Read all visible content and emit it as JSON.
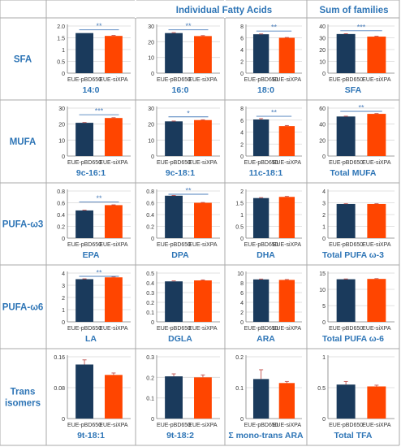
{
  "header": {
    "individual": "Individual Fatty Acids",
    "families": "Sum of families"
  },
  "colors": {
    "ctrl": "#1a3a5c",
    "sixpa": "#ff4500",
    "heading": "#2e75b6",
    "sig_line": "#4f81bd",
    "grid": "#d9d9d9",
    "error": "#c0504d"
  },
  "rows": [
    {
      "label": "SFA"
    },
    {
      "label": "MUFA"
    },
    {
      "label": "PUFA-ω3"
    },
    {
      "label": "PUFA-ω6"
    },
    {
      "label": "Trans isomers"
    }
  ],
  "chart_data": [
    {
      "type": "bar",
      "title": "14:0",
      "categories": [
        "EUE-pBD650",
        "EUE-siXPA"
      ],
      "values": [
        1.7,
        1.58
      ],
      "errors": [
        0,
        0.02
      ],
      "ylim": [
        0,
        2
      ],
      "yticks": [
        "0",
        "0.5",
        "1",
        "1.5",
        "2.0"
      ],
      "sig": "**"
    },
    {
      "type": "bar",
      "title": "16:0",
      "categories": [
        "EUE-pBD650",
        "EUE-siXPA"
      ],
      "values": [
        25.5,
        23.6
      ],
      "errors": [
        0.3,
        0.3
      ],
      "ylim": [
        0,
        30
      ],
      "yticks": [
        "0",
        "10",
        "20",
        "30"
      ],
      "sig": "**"
    },
    {
      "type": "bar",
      "title": "18:0",
      "categories": [
        "EUE-pBD650",
        "EUE-siXPA"
      ],
      "values": [
        6.6,
        6.0
      ],
      "errors": [
        0.05,
        0.05
      ],
      "ylim": [
        0,
        8
      ],
      "yticks": [
        "0",
        "2",
        "4",
        "6",
        "8"
      ],
      "sig": "**"
    },
    {
      "type": "bar",
      "title": "SFA",
      "categories": [
        "EUE-pBD650",
        "EUE-siXPA"
      ],
      "values": [
        33.2,
        31.0
      ],
      "errors": [
        0.3,
        0.3
      ],
      "ylim": [
        0,
        40
      ],
      "yticks": [
        "0",
        "10",
        "20",
        "30",
        "40"
      ],
      "sig": "***"
    },
    {
      "type": "bar",
      "title": "9c-16:1",
      "categories": [
        "EUE-pBD650",
        "EUE-siXPA"
      ],
      "values": [
        20.8,
        23.8
      ],
      "errors": [
        0.2,
        0.2
      ],
      "ylim": [
        0,
        30
      ],
      "yticks": [
        "0",
        "10",
        "20",
        "30"
      ],
      "sig": "***"
    },
    {
      "type": "bar",
      "title": "9c-18:1",
      "categories": [
        "EUE-pBD650",
        "EUE-siXPA"
      ],
      "values": [
        21.7,
        22.5
      ],
      "errors": [
        0.2,
        0.2
      ],
      "ylim": [
        0,
        30
      ],
      "yticks": [
        "0",
        "10",
        "20",
        "30"
      ],
      "sig": "*"
    },
    {
      "type": "bar",
      "title": "11c-18:1",
      "categories": [
        "EUE-pBD650",
        "EUE-siXPA"
      ],
      "values": [
        6.1,
        5.0
      ],
      "errors": [
        0.15,
        0.1
      ],
      "ylim": [
        0,
        8
      ],
      "yticks": [
        "0",
        "2",
        "4",
        "6",
        "8"
      ],
      "sig": "**"
    },
    {
      "type": "bar",
      "title": "Total MUFA",
      "categories": [
        "EUE-pBD650",
        "EUE-siXPA"
      ],
      "values": [
        49.5,
        52.8
      ],
      "errors": [
        0.4,
        0.4
      ],
      "ylim": [
        0,
        60
      ],
      "yticks": [
        "0",
        "20",
        "40",
        "60"
      ],
      "sig": "**"
    },
    {
      "type": "bar",
      "title": "EPA",
      "categories": [
        "EUE-pBD650",
        "EUE-siXPA"
      ],
      "values": [
        0.47,
        0.56
      ],
      "errors": [
        0.005,
        0.005
      ],
      "ylim": [
        0,
        0.8
      ],
      "yticks": [
        "0",
        "0.2",
        "0.4",
        "0.6",
        "0.8"
      ],
      "sig": "**"
    },
    {
      "type": "bar",
      "title": "DPA",
      "categories": [
        "EUE-pBD650",
        "EUE-siXPA"
      ],
      "values": [
        0.72,
        0.6
      ],
      "errors": [
        0.005,
        0.005
      ],
      "ylim": [
        0,
        0.8
      ],
      "yticks": [
        "0",
        "0.2",
        "0.4",
        "0.6",
        "0.8"
      ],
      "sig": "**"
    },
    {
      "type": "bar",
      "title": "DHA",
      "categories": [
        "EUE-pBD650",
        "EUE-siXPA"
      ],
      "values": [
        1.7,
        1.75
      ],
      "errors": [
        0.02,
        0.02
      ],
      "ylim": [
        0,
        2
      ],
      "yticks": [
        "0",
        "0.5",
        "1",
        "1.5",
        "2"
      ],
      "sig": ""
    },
    {
      "type": "bar",
      "title": "Total PUFA ω-3",
      "categories": [
        "EUE-pBD650",
        "EUE-siXPA"
      ],
      "values": [
        2.9,
        2.9
      ],
      "errors": [
        0.02,
        0.02
      ],
      "ylim": [
        0,
        4
      ],
      "yticks": [
        "0",
        "1",
        "2",
        "3",
        "4"
      ],
      "sig": ""
    },
    {
      "type": "bar",
      "title": "LA",
      "categories": [
        "EUE-pBD650",
        "EUE-siXPA"
      ],
      "values": [
        3.5,
        3.65
      ],
      "errors": [
        0.03,
        0.03
      ],
      "ylim": [
        0,
        4
      ],
      "yticks": [
        "0",
        "1",
        "2",
        "3",
        "4"
      ],
      "sig": "**"
    },
    {
      "type": "bar",
      "title": "DGLA",
      "categories": [
        "EUE-pBD650",
        "EUE-siXPA"
      ],
      "values": [
        0.415,
        0.425
      ],
      "errors": [
        0.005,
        0.005
      ],
      "ylim": [
        0,
        0.5
      ],
      "yticks": [
        "0",
        "0.1",
        "0.2",
        "0.3",
        "0.4",
        "0.5"
      ],
      "sig": ""
    },
    {
      "type": "bar",
      "title": "ARA",
      "categories": [
        "EUE-pBD650",
        "EUE-siXPA"
      ],
      "values": [
        8.7,
        8.6
      ],
      "errors": [
        0.08,
        0.08
      ],
      "ylim": [
        0,
        10
      ],
      "yticks": [
        "0",
        "2",
        "4",
        "6",
        "8",
        "10"
      ],
      "sig": ""
    },
    {
      "type": "bar",
      "title": "Total PUFA ω-6",
      "categories": [
        "EUE-pBD650",
        "EUE-siXPA"
      ],
      "values": [
        13.1,
        13.2
      ],
      "errors": [
        0.1,
        0.1
      ],
      "ylim": [
        0,
        15
      ],
      "yticks": [
        "0",
        "5",
        "10",
        "15"
      ],
      "sig": ""
    },
    {
      "type": "bar",
      "title": "9t-18:1",
      "categories": [
        "EUE-pBD650",
        "EUE-siXPA"
      ],
      "values": [
        0.14,
        0.113
      ],
      "errors": [
        0.012,
        0.005
      ],
      "ylim": [
        0,
        0.16
      ],
      "yticks": [
        "0",
        "0.08",
        "0.16"
      ],
      "sig": ""
    },
    {
      "type": "bar",
      "title": "9t-18:2",
      "categories": [
        "EUE-pBD650",
        "EUE-siXPA"
      ],
      "values": [
        0.205,
        0.2
      ],
      "errors": [
        0.012,
        0.012
      ],
      "ylim": [
        0,
        0.3
      ],
      "yticks": [
        "0",
        "0.1",
        "0.2",
        "0.3"
      ],
      "sig": ""
    },
    {
      "type": "bar",
      "title": "Σ mono-trans ARA",
      "categories": [
        "EUE-pBD650",
        "EUE-siXPA"
      ],
      "values": [
        0.128,
        0.115
      ],
      "errors": [
        0.03,
        0.005
      ],
      "ylim": [
        0,
        0.2
      ],
      "yticks": [
        "0",
        "0.1",
        "0.2"
      ],
      "sig": ""
    },
    {
      "type": "bar",
      "title": "Total TFA",
      "categories": [
        "EUE-pBD650",
        "EUE-siXPA"
      ],
      "values": [
        0.55,
        0.52
      ],
      "errors": [
        0.05,
        0.02
      ],
      "ylim": [
        0,
        1
      ],
      "yticks": [
        "0",
        "0.5",
        "1"
      ],
      "sig": ""
    }
  ]
}
